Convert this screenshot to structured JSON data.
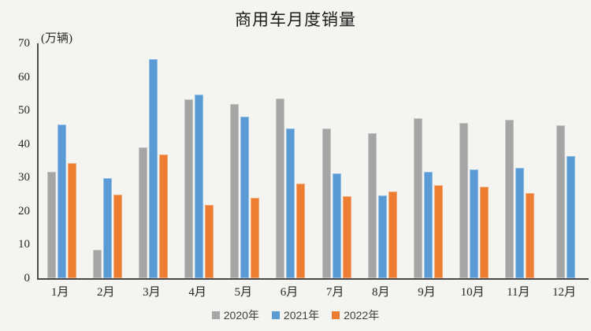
{
  "chart_data": {
    "type": "bar",
    "title": "商用车月度销量",
    "unit_label": "(万辆)",
    "categories": [
      "1月",
      "2月",
      "3月",
      "4月",
      "5月",
      "6月",
      "7月",
      "8月",
      "9月",
      "10月",
      "11月",
      "12月"
    ],
    "series": [
      {
        "name": "2020年",
        "color": "#a5a5a5",
        "values": [
          31.7,
          8.5,
          38.9,
          53.4,
          51.9,
          53.6,
          44.7,
          43.2,
          47.7,
          46.3,
          47.2,
          45.6
        ]
      },
      {
        "name": "2021年",
        "color": "#5b9bd5",
        "values": [
          45.9,
          29.8,
          65.3,
          54.8,
          48.2,
          44.6,
          31.2,
          24.7,
          31.7,
          32.4,
          32.9,
          36.4
        ]
      },
      {
        "name": "2022年",
        "color": "#ed7d31",
        "values": [
          34.4,
          25.0,
          36.9,
          21.8,
          23.9,
          28.2,
          24.5,
          25.8,
          27.7,
          27.2,
          25.4,
          null
        ]
      }
    ],
    "ylim": [
      0,
      70
    ],
    "ytick_step": 10,
    "grid": false,
    "legend_position": "bottom",
    "colors": {
      "background": "#f4f4f1",
      "axis_line": "#4a4a4a",
      "text": "#262626"
    }
  }
}
